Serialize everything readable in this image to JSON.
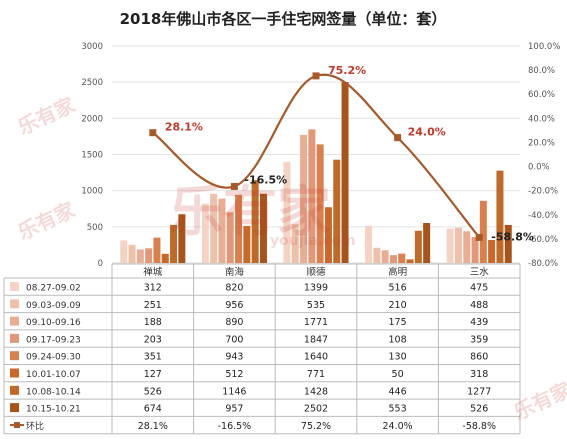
{
  "chart_data": {
    "type": "bar",
    "title": "2018年佛山市各区一手住宅网签量（单位：套）",
    "categories": [
      "禅城",
      "南海",
      "顺德",
      "高明",
      "三水"
    ],
    "ylim": [
      0,
      3000
    ],
    "y2lim": [
      -80,
      100
    ],
    "y_ticks": [
      "0",
      "500",
      "1000",
      "1500",
      "2000",
      "2500",
      "3000"
    ],
    "y2_ticks": [
      "-80.0%",
      "-60.0%",
      "-40.0%",
      "-20.0%",
      "0.0%",
      "20.0%",
      "40.0%",
      "60.0%",
      "80.0%",
      "100.0%"
    ],
    "series": [
      {
        "name": "08.27-09.02",
        "color": "#f4d3c4",
        "values": [
          312,
          820,
          1399,
          516,
          475
        ],
        "value_labels": [
          "312",
          "820",
          "1399",
          "516",
          "475"
        ]
      },
      {
        "name": "09.03-09.09",
        "color": "#efc1ab",
        "values": [
          251,
          956,
          535,
          210,
          488
        ],
        "value_labels": [
          "251",
          "956",
          "535",
          "210",
          "488"
        ]
      },
      {
        "name": "09.10-09.16",
        "color": "#e9ad93",
        "values": [
          188,
          890,
          1771,
          175,
          439
        ],
        "value_labels": [
          "188",
          "890",
          "1771",
          "175",
          "439"
        ]
      },
      {
        "name": "09.17-09.23",
        "color": "#e29878",
        "values": [
          203,
          700,
          1847,
          108,
          359
        ],
        "value_labels": [
          "203",
          "700",
          "1847",
          "108",
          "359"
        ]
      },
      {
        "name": "09.24-09.30",
        "color": "#d9804f",
        "values": [
          351,
          943,
          1640,
          130,
          860
        ],
        "value_labels": [
          "351",
          "943",
          "1640",
          "130",
          "860"
        ]
      },
      {
        "name": "10.01-10.07",
        "color": "#c8692b",
        "values": [
          127,
          512,
          771,
          50,
          318
        ],
        "value_labels": [
          "127",
          "512",
          "771",
          "50",
          "318"
        ]
      },
      {
        "name": "10.08-10.14",
        "color": "#bd6a2a",
        "values": [
          526,
          1146,
          1428,
          446,
          1277
        ],
        "value_labels": [
          "526",
          "1146",
          "1428",
          "446",
          "1277"
        ]
      },
      {
        "name": "10.15-10.21",
        "color": "#a6541c",
        "values": [
          674,
          957,
          2502,
          553,
          526
        ],
        "value_labels": [
          "674",
          "957",
          "2502",
          "553",
          "526"
        ]
      }
    ],
    "line_series": {
      "name": "环比",
      "color": "#a65a2c",
      "values": [
        28.1,
        -16.5,
        75.2,
        24.0,
        -58.8
      ],
      "labels": [
        "28.1%",
        "-16.5%",
        "75.2%",
        "24.0%",
        "-58.8%"
      ]
    }
  },
  "watermark": {
    "text": "乐有家",
    "site": "youjia.com"
  }
}
